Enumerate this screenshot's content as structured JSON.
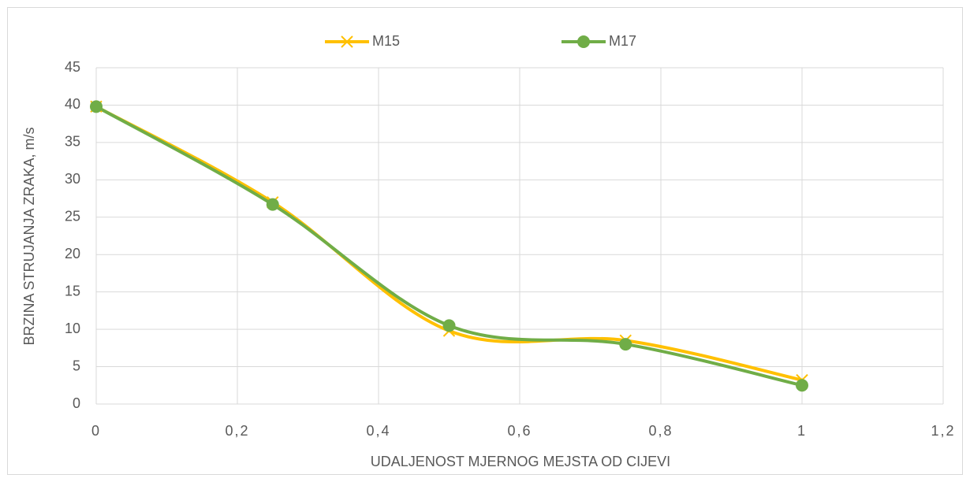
{
  "chart_data": {
    "type": "line",
    "x": [
      0,
      0.25,
      0.5,
      0.75,
      1
    ],
    "series": [
      {
        "name": "M15",
        "color": "#FFC000",
        "marker": "x",
        "values": [
          39.8,
          27,
          9.8,
          8.5,
          3.2
        ]
      },
      {
        "name": "M17",
        "color": "#70AD47",
        "marker": "circle",
        "values": [
          39.8,
          26.7,
          10.5,
          8,
          2.5
        ]
      }
    ],
    "xlabel": "UDALJENOST MJERNOG MEJSTA OD CIJEVI",
    "ylabel": "BRZINA STRUJANJA ZRAKA, m/s",
    "xlim": [
      0,
      1.2
    ],
    "xticks": [
      0,
      {
        "value": 0.2,
        "label": "0,2"
      },
      {
        "value": 0.4,
        "label": "0,4"
      },
      {
        "value": 0.6,
        "label": "0,6"
      },
      {
        "value": 0.8,
        "label": "0,8"
      },
      1,
      {
        "value": 1.2,
        "label": "1,2"
      }
    ],
    "ylim": [
      0,
      45
    ],
    "yticks": [
      0,
      5,
      10,
      15,
      20,
      25,
      30,
      35,
      40,
      45
    ],
    "grid": true,
    "smooth": true,
    "legend": "top"
  }
}
